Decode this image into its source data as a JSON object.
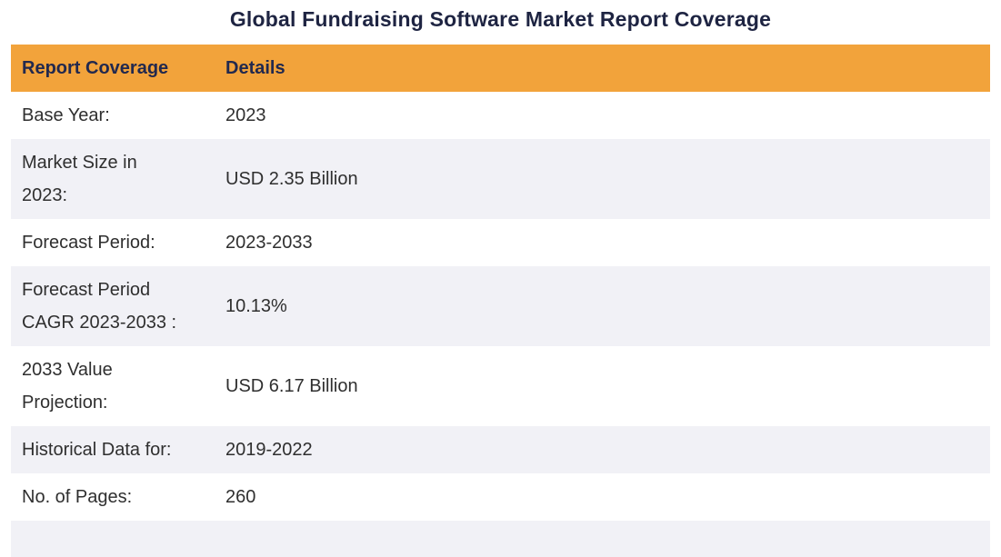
{
  "page": {
    "title": "Global Fundraising Software Market Report Coverage"
  },
  "colors": {
    "header_bg": "#f2a33b",
    "stripe_bg": "#f1f1f6",
    "title_text": "#1e2442",
    "header_text": "#22294e",
    "body_text": "#2f2f2f"
  },
  "table": {
    "headers": {
      "coverage": "Report Coverage",
      "details": "Details"
    },
    "rows": [
      {
        "label": "Base Year:",
        "value": "2023"
      },
      {
        "label": "Market Size in 2023:",
        "value": "USD 2.35 Billion"
      },
      {
        "label": "Forecast Period:",
        "value": "2023-2033"
      },
      {
        "label": "Forecast Period CAGR 2023-2033 :",
        "value": "10.13%"
      },
      {
        "label": "2033 Value Projection:",
        "value": "USD 6.17 Billion"
      },
      {
        "label": "Historical Data for:",
        "value": "2019-2022"
      },
      {
        "label": "No. of Pages:",
        "value": "260"
      }
    ]
  },
  "chart_data": {
    "type": "table",
    "title": "Global Fundraising Software Market Report Coverage",
    "columns": [
      "Report Coverage",
      "Details"
    ],
    "rows": [
      [
        "Base Year:",
        "2023"
      ],
      [
        "Market Size in 2023:",
        "USD 2.35 Billion"
      ],
      [
        "Forecast Period:",
        "2023-2033"
      ],
      [
        "Forecast Period CAGR 2023-2033 :",
        "10.13%"
      ],
      [
        "2033 Value Projection:",
        "USD 6.17 Billion"
      ],
      [
        "Historical Data for:",
        "2019-2022"
      ],
      [
        "No. of Pages:",
        "260"
      ]
    ]
  }
}
